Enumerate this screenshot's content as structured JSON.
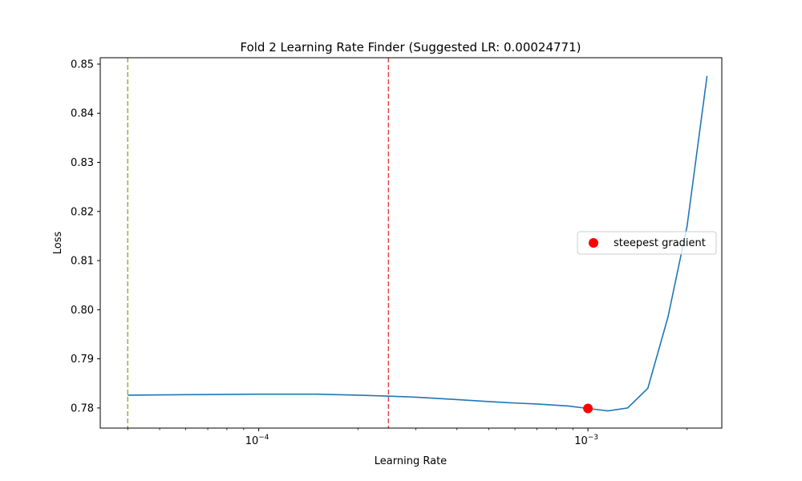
{
  "chart_data": {
    "type": "line",
    "title": "Fold 2 Learning Rate Finder (Suggested LR: 0.00024771)",
    "xlabel": "Learning Rate",
    "ylabel": "Loss",
    "x_scale": "log",
    "xlim": [
      3.3e-05,
      0.00255
    ],
    "ylim": [
      0.7759,
      0.8513
    ],
    "x_major_ticks": [
      {
        "value": 0.0001,
        "base": "10",
        "exp": "−4"
      },
      {
        "value": 0.001,
        "base": "10",
        "exp": "−3"
      }
    ],
    "y_ticks": [
      {
        "value": 0.78,
        "label": "0.78"
      },
      {
        "value": 0.79,
        "label": "0.79"
      },
      {
        "value": 0.8,
        "label": "0.80"
      },
      {
        "value": 0.81,
        "label": "0.81"
      },
      {
        "value": 0.82,
        "label": "0.82"
      },
      {
        "value": 0.83,
        "label": "0.83"
      },
      {
        "value": 0.84,
        "label": "0.84"
      },
      {
        "value": 0.85,
        "label": "0.85"
      }
    ],
    "series": [
      {
        "color": "#1f77b4",
        "x": [
          4e-05,
          6e-05,
          0.0001,
          0.00015,
          0.0002,
          0.00025,
          0.0003,
          0.0004,
          0.0005,
          0.0006,
          0.0007,
          0.00087,
          0.001,
          0.00115,
          0.00132,
          0.00152,
          0.00175,
          0.002,
          0.0023
        ],
        "y": [
          0.7826,
          0.7827,
          0.7828,
          0.7828,
          0.7826,
          0.7824,
          0.7822,
          0.7817,
          0.7813,
          0.781,
          0.7808,
          0.7804,
          0.7799,
          0.7794,
          0.78,
          0.784,
          0.7985,
          0.817,
          0.8476
        ]
      }
    ],
    "steepest_point": {
      "x": 0.001,
      "y": 0.7799,
      "color": "#ff0000"
    },
    "vlines": [
      {
        "x": 4e-05,
        "color": "#8fb339",
        "style": "dashed"
      },
      {
        "x": 0.00024771,
        "color": "#e8474a",
        "style": "dashed"
      }
    ],
    "legend": {
      "position": "right",
      "entries": [
        {
          "label": "steepest gradient",
          "color": "#ff0000",
          "marker": "circle"
        }
      ]
    },
    "grid": false
  }
}
